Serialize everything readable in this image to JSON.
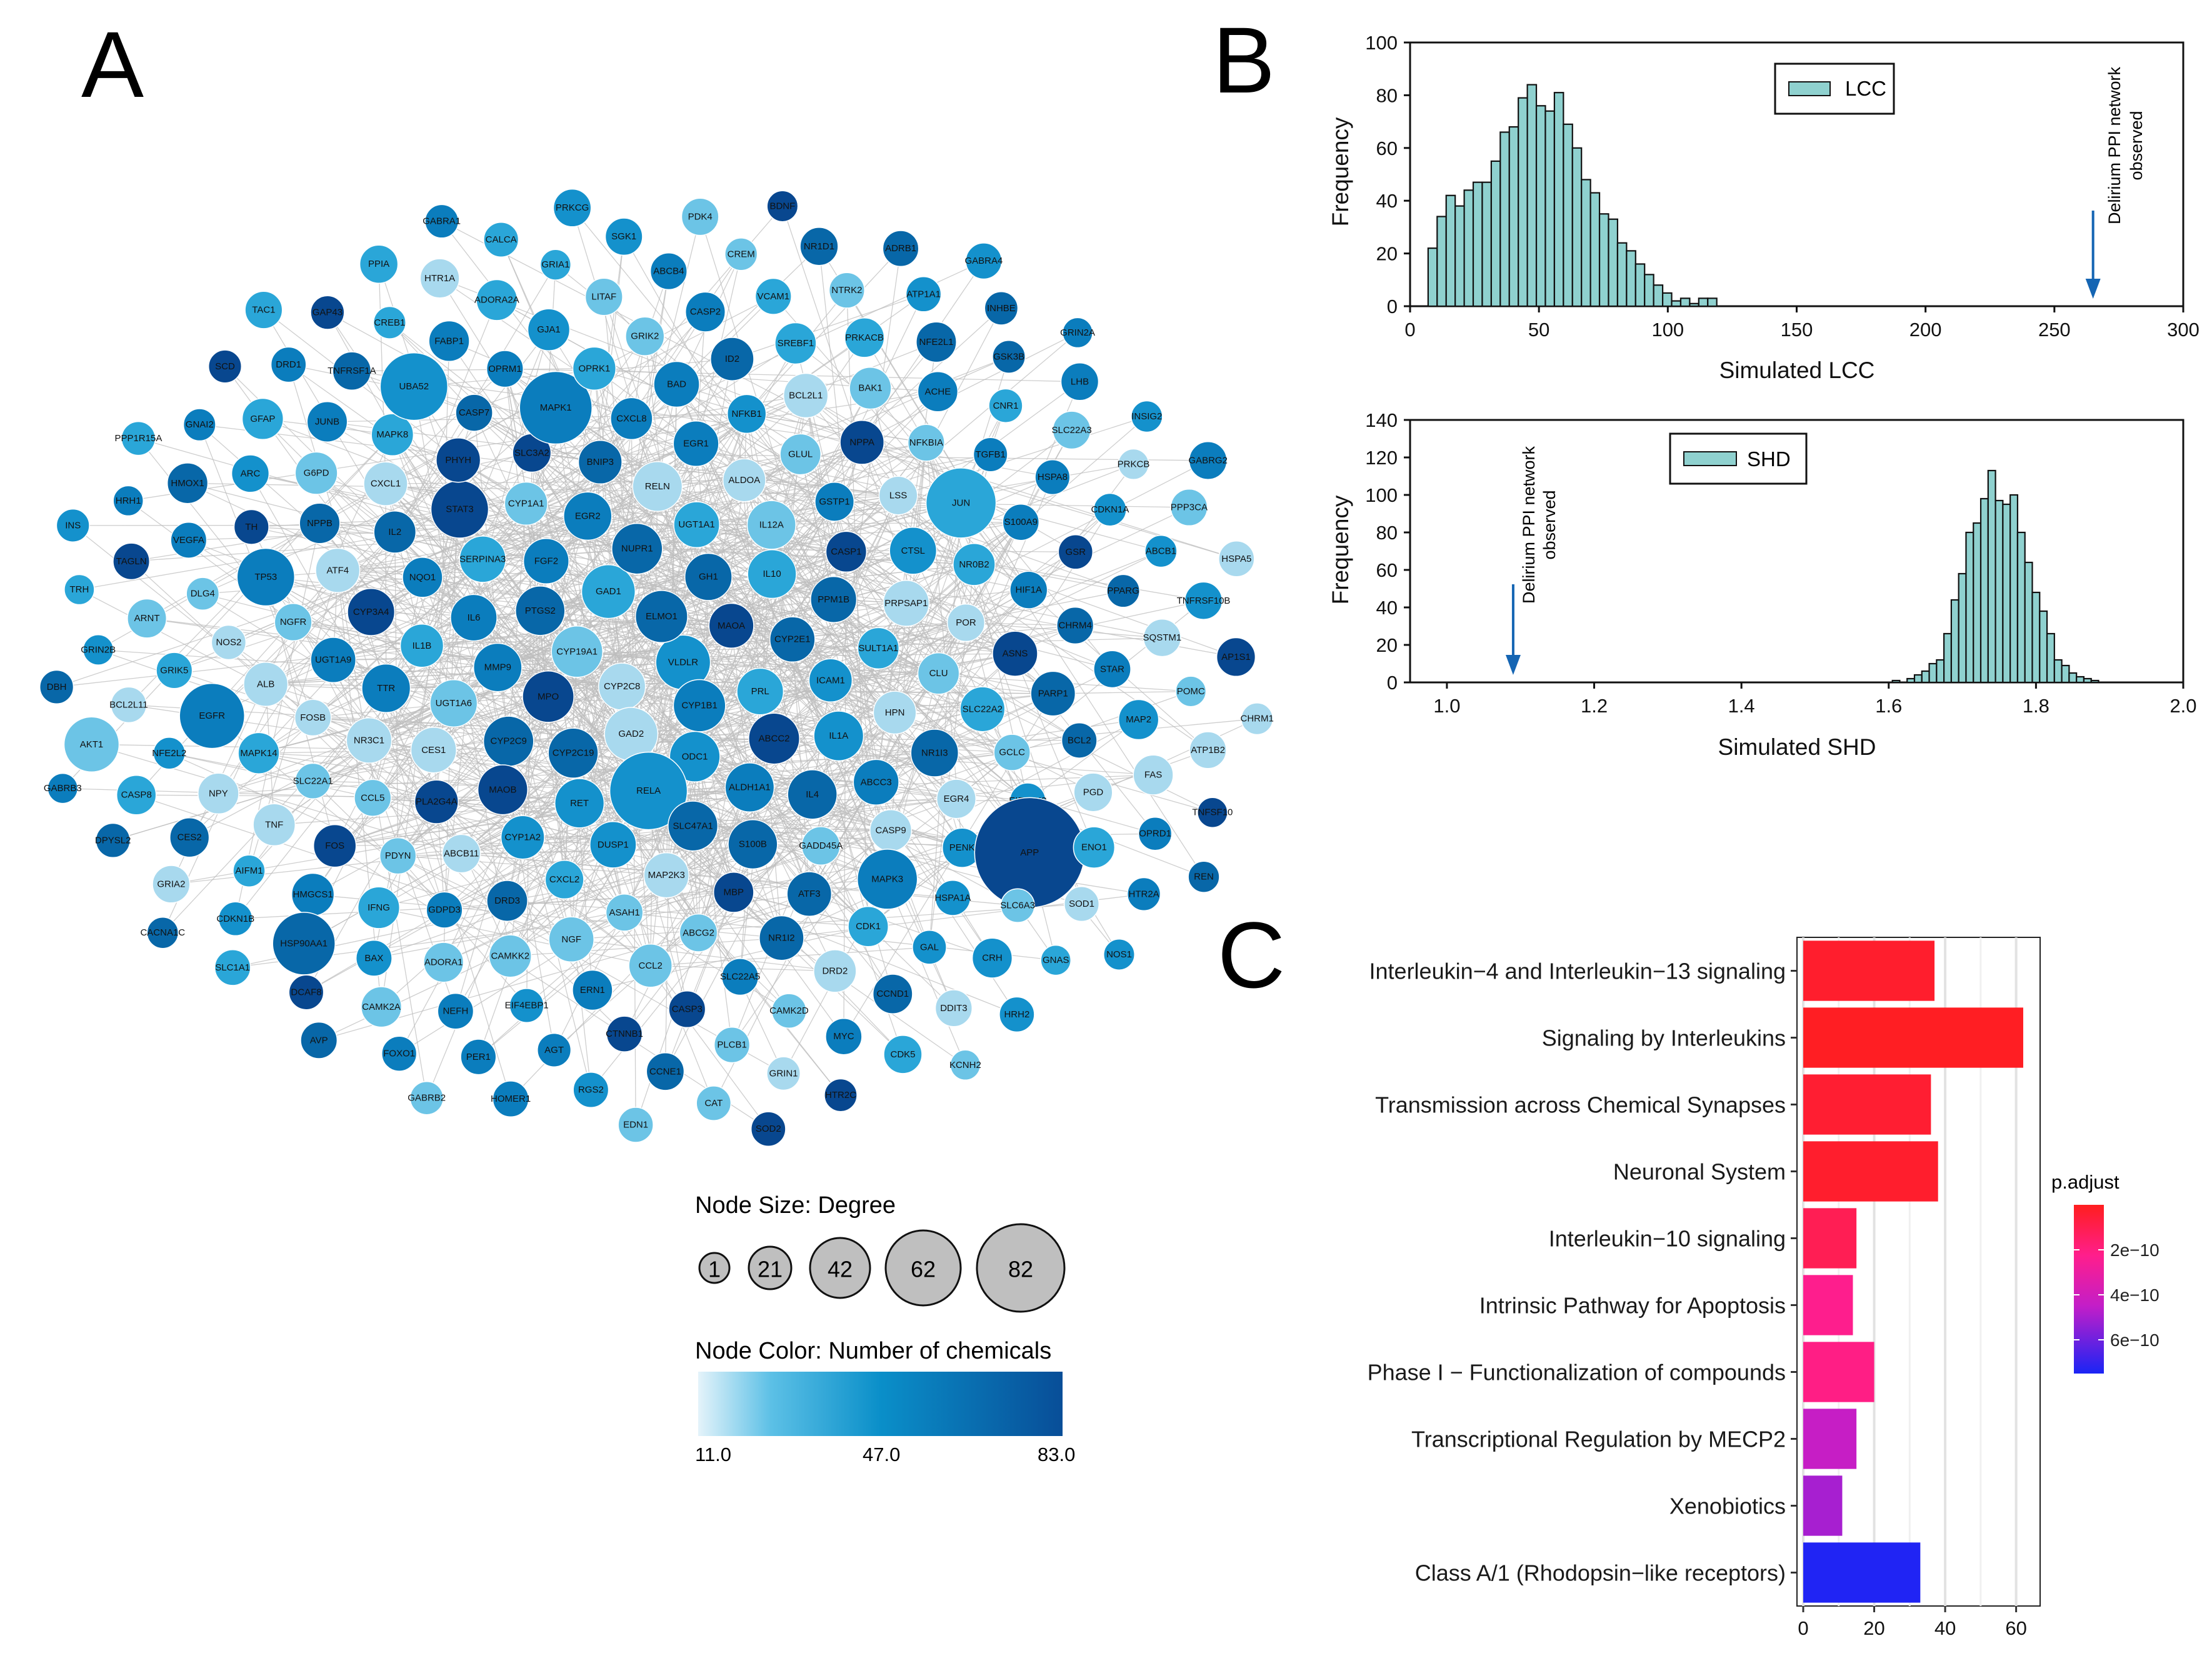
{
  "panel_labels": {
    "a": "A",
    "b": "B",
    "c": "C"
  },
  "colors": {
    "node_low": "#c6e4f2",
    "node_mid": "#1c9fd2",
    "node_high": "#08478f",
    "hist_fill": "#8fd1cf",
    "hist_edge": "#111111",
    "arrow": "#1565b3",
    "bar_red": "#ff1e1e",
    "bar_pink": "#ff2a8a",
    "bar_magenta": "#d11ec8",
    "bar_purple": "#b41ec8",
    "bar_blue": "#1a24f5",
    "edge": "#bdbdbd",
    "size_legend": "#bfbfbf"
  },
  "network": {
    "genes": [
      "VLDLR",
      "CYP2C8",
      "ELMO1",
      "CYP1B1",
      "CYP19A1",
      "MAOA",
      "GAD2",
      "GAD1",
      "PRL",
      "MPO",
      "GH1",
      "ODC1",
      "PTGS2",
      "CYP2E1",
      "CYP2C19",
      "NUPR1",
      "ABCC2",
      "MMP9",
      "IL10",
      "RELA",
      "FGF2",
      "ICAM1",
      "CYP2C9",
      "UGT1A1",
      "ALDH1A1",
      "IL6",
      "PPM1B",
      "RET",
      "EGR2",
      "IL1A",
      "UGT1A6",
      "IL12A",
      "SLC47A1",
      "SERPINA3",
      "SULT1A1",
      "MAOB",
      "RELN",
      "IL4",
      "IL1B",
      "CASP1",
      "DUSP1",
      "CYP1A1",
      "HPN",
      "CES1",
      "ALDOA",
      "S100B",
      "NQO1",
      "PRPSAP1",
      "CYP1A2",
      "BNIP3",
      "ABCC3",
      "TTR",
      "GSTP1",
      "MAP2K3",
      "STAT3",
      "CLU",
      "PLA2G4A",
      "EGR1",
      "GADD45A",
      "CYP3A4",
      "CTSL",
      "CXCL2",
      "SLC3A2",
      "NR1I3",
      "NR3C1",
      "GLUL",
      "MBP",
      "IL2",
      "POR",
      "ABCB11",
      "CXCL8",
      "CASP9",
      "UGT1A9",
      "LSS",
      "ASAH1",
      "PHYH",
      "SLC22A2",
      "CCL5",
      "NFKB1",
      "ATF3",
      "ATF4",
      "NR0B2",
      "DRD3",
      "MAPK1",
      "EGR4",
      "FOSB",
      "NPPA",
      "ABCG2",
      "CXCL1",
      "ASNS",
      "PDYN",
      "BAD",
      "MAPK3",
      "NGFR",
      "JUN",
      "NGF",
      "CASP7",
      "GCLC",
      "SLC22A1",
      "BCL2L1",
      "NR1I2",
      "NPPB",
      "HIF1A",
      "GDPD3",
      "OPRK1",
      "PENK",
      "ALB",
      "NFKBIA",
      "CCL2",
      "MAPK8",
      "PARP1",
      "FOS",
      "ID2",
      "CDK1",
      "TP53",
      "S100A9",
      "CAMKK2",
      "OPRM1",
      "EIF2AK3",
      "MAPK14",
      "BAK1",
      "SLC22A5",
      "G6PD",
      "CHRM4",
      "IFNG",
      "GRIK2",
      "HSPA1A",
      "NOS2",
      "TGFB1",
      "ERN1",
      "UBA52",
      "BCL2",
      "TNF",
      "SREBF1",
      "DRD2",
      "TH",
      "GSR",
      "ADORA1",
      "GJA1",
      "APP",
      "EGFR",
      "ACHE",
      "CASP3",
      "JUNB",
      "STAR",
      "HMGCS1",
      "CASP2",
      "GAL",
      "DLG4",
      "HSPA8",
      "EIF4EBP1",
      "FABP1",
      "PGD",
      "NPY",
      "PRKACB",
      "CAMK2D",
      "ARC",
      "PPARG",
      "BAX",
      "LITAF",
      "SLC6A3",
      "GRIK5",
      "CNR1",
      "CTNNB1",
      "TNFRSF1A",
      "MAP2",
      "AIFM1",
      "VCAM1",
      "CCND1",
      "VEGFA",
      "CDKN1A",
      "NEFH",
      "ADORA2A",
      "ENO1",
      "NFE2L2",
      "NFE2L1",
      "PLCB1",
      "GFAP",
      "SQSTM1",
      "HSP90AA1",
      "ABCB4",
      "CRH",
      "ARNT",
      "SLC22A3",
      "AGT",
      "CREB1",
      "FAS",
      "CES2",
      "NTRK2",
      "MYC",
      "HMOX1",
      "ABCB1",
      "CAMK2A",
      "GRIA1",
      "SOD1",
      "BCL2L11",
      "GSK3B",
      "CCNE1",
      "DRD1",
      "POMC",
      "CDKN1B",
      "CREM",
      "DDIT3",
      "TAGLN",
      "PRKCB",
      "PER1",
      "HTR1A",
      "OPRD1",
      "CASP8",
      "ATP1A1",
      "GRIN1",
      "GNAI2",
      "TNFRSF10B",
      "DCAF8",
      "SGK1",
      "GNAS",
      "GRIN2B",
      "LHB",
      "RGS2",
      "GAP43",
      "ATP1B2",
      "GRIA2",
      "NR1D1",
      "CDK5",
      "HRH1",
      "PPP3CA",
      "FOXO1",
      "CALCA",
      "HTR2A",
      "AKT1",
      "INHBE",
      "CAT",
      "SCD",
      "AP1S1",
      "SLC1A1",
      "PDK4",
      "HRH2",
      "TRH",
      "INSIG2",
      "HOMER1",
      "PPIA",
      "TNFSF10",
      "DPYSL2",
      "ADRB1",
      "HTR2C",
      "PPP1R15A",
      "HSPA5",
      "AVP",
      "PRKCG",
      "NOS1",
      "DBH",
      "GRIN2A",
      "EDN1",
      "TAC1",
      "CHRM1",
      "CACNA1C",
      "BDNF",
      "KCNH2",
      "INS",
      "GABRG2",
      "GABRB2",
      "GABRA1",
      "REN",
      "GABRB3",
      "GABRA4",
      "SOD2"
    ],
    "legend_size_title": "Node Size:  Degree",
    "legend_size_values": [
      "1",
      "21",
      "42",
      "62",
      "82"
    ],
    "legend_color_title": "Node Color:  Number of chemicals",
    "legend_color_ticks": [
      "11.0",
      "47.0",
      "83.0"
    ]
  },
  "chart_data": [
    {
      "type": "bar",
      "panel": "B-top",
      "title": "",
      "xlabel": "Simulated LCC",
      "ylabel": "Frequency",
      "xlim": [
        0,
        300
      ],
      "ylim": [
        0,
        100
      ],
      "xticks": [
        "0",
        "50",
        "100",
        "150",
        "200",
        "250",
        "300"
      ],
      "yticks": [
        "0",
        "20",
        "40",
        "60",
        "80",
        "100"
      ],
      "bin_width": 3.5,
      "bin_start": 7,
      "values": [
        22,
        34,
        42,
        38,
        44,
        47,
        47,
        55,
        66,
        68,
        79,
        84,
        76,
        74,
        81,
        69,
        60,
        48,
        43,
        35,
        33,
        24,
        21,
        16,
        12,
        8,
        5,
        2,
        3,
        1,
        3,
        3
      ],
      "legend": "LCC",
      "legend_position": "top-right",
      "annotation": {
        "text_line1": "Delirium PPI network",
        "text_line2": "observed",
        "x": 265
      }
    },
    {
      "type": "bar",
      "panel": "B-bottom",
      "title": "",
      "xlabel": "Simulated SHD",
      "ylabel": "Frequency",
      "xlim": [
        0.95,
        2.0
      ],
      "ylim": [
        0,
        140
      ],
      "xticks": [
        "1.0",
        "1.2",
        "1.4",
        "1.6",
        "1.8",
        "2.0"
      ],
      "yticks": [
        "0",
        "20",
        "40",
        "60",
        "80",
        "100",
        "120",
        "140"
      ],
      "bin_width": 0.01,
      "bin_start": 1.605,
      "values": [
        1,
        0,
        2,
        4,
        6,
        10,
        12,
        26,
        44,
        58,
        80,
        85,
        98,
        113,
        97,
        95,
        100,
        80,
        64,
        48,
        38,
        26,
        12,
        9,
        5,
        3,
        2,
        1
      ],
      "legend": "SHD",
      "legend_position": "top-center",
      "annotation": {
        "text_line1": "Delirium PPI network",
        "text_line2": "observed",
        "x": 1.09
      }
    },
    {
      "type": "bar",
      "panel": "C",
      "orientation": "horizontal",
      "title": "",
      "xlabel": "",
      "ylabel": "",
      "xlim": [
        0,
        65
      ],
      "xticks": [
        "0",
        "20",
        "40",
        "60"
      ],
      "categories": [
        "Interleukin−4 and Interleukin−13 signaling",
        "Signaling by Interleukins",
        "Transmission across Chemical Synapses",
        "Neuronal System",
        "Interleukin−10 signaling",
        "Intrinsic Pathway for Apoptosis",
        "Phase I − Functionalization of compounds",
        "Transcriptional Regulation by MECP2",
        "Xenobiotics",
        "Class A/1 (Rhodopsin−like receptors)"
      ],
      "values": [
        37,
        62,
        36,
        38,
        15,
        14,
        20,
        15,
        11,
        33
      ],
      "p_adjust": [
        3e-11,
        1e-11,
        4e-11,
        3e-11,
        1.1e-10,
        2.3e-10,
        2.1e-10,
        4.4e-10,
        5e-10,
        7.4e-10
      ],
      "legend_title": "p.adjust",
      "legend_ticks": [
        "2e−10",
        "4e−10",
        "6e−10"
      ],
      "legend_tick_values": [
        2e-10,
        4e-10,
        6e-10
      ],
      "legend_range": [
        0,
        7.5e-10
      ]
    }
  ]
}
